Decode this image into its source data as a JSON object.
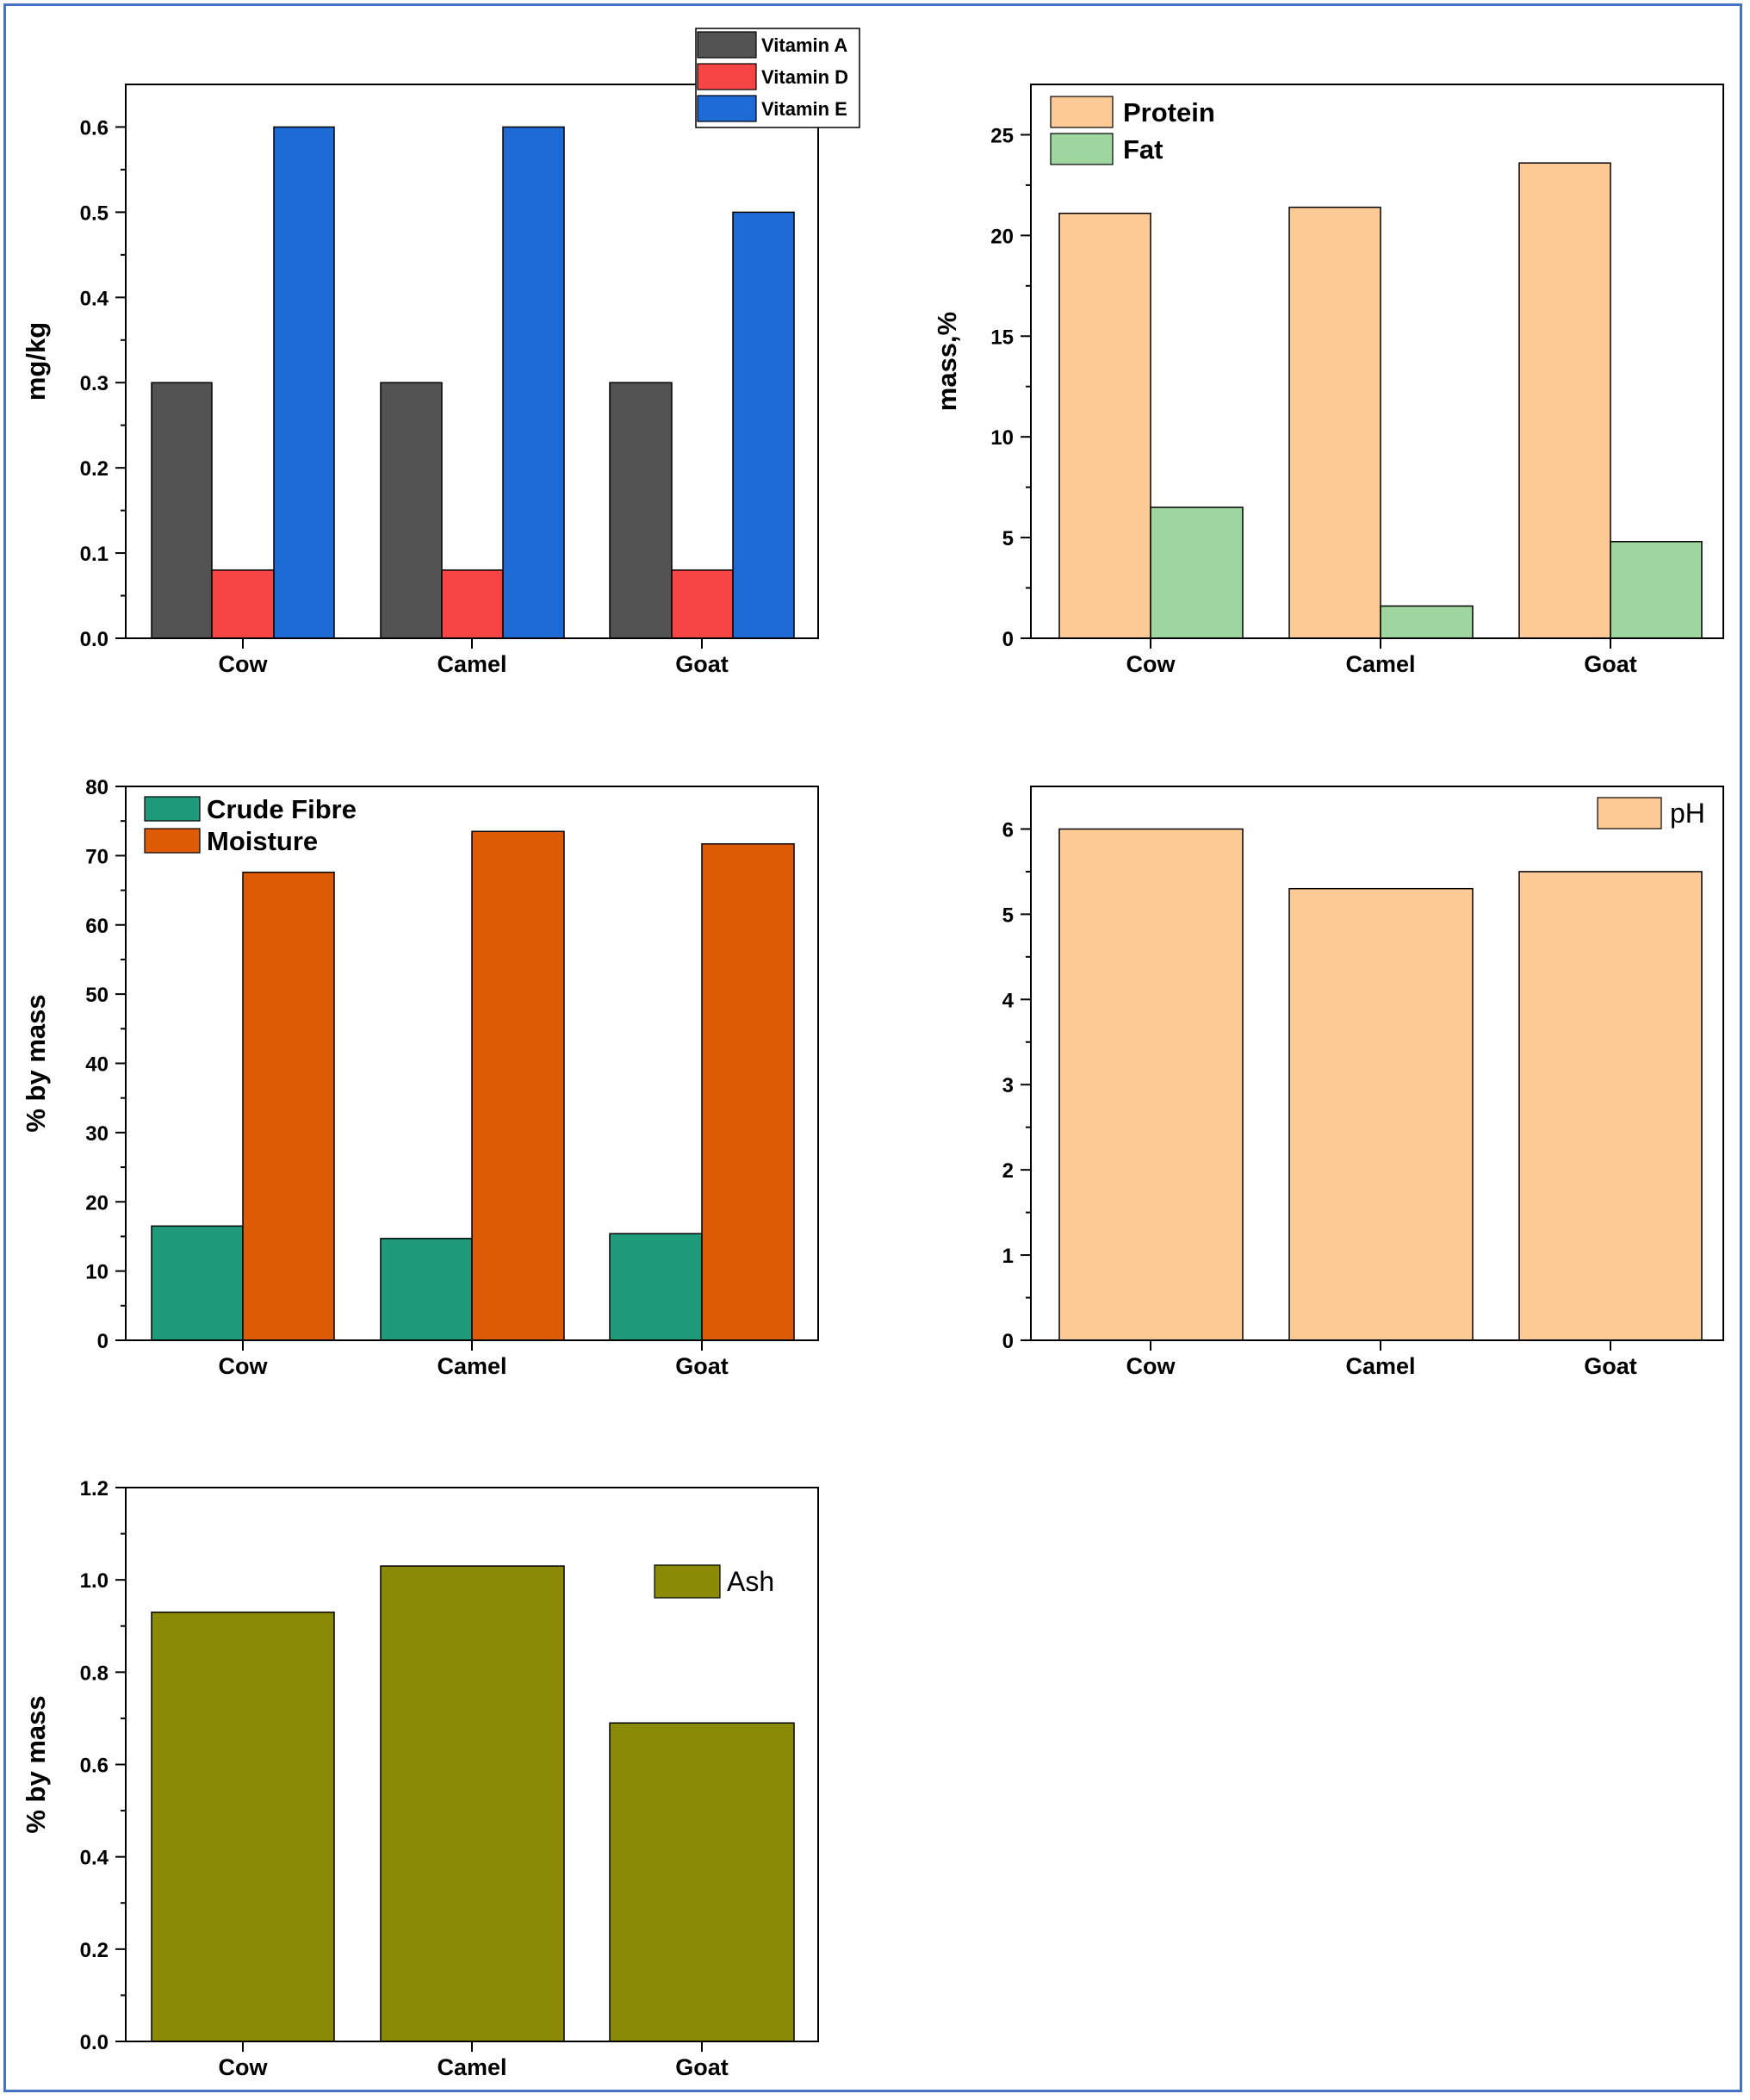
{
  "colors": {
    "frame_border": "#4472c4",
    "vitamin_a": "#525252",
    "vitamin_d": "#f74545",
    "vitamin_e": "#1f6bd6",
    "protein": "#fdca96",
    "fat": "#9fd69f",
    "crude_fibre": "#1f9b7b",
    "moisture": "#dd5a07",
    "ph": "#fdca96",
    "ash": "#8a8a06"
  },
  "chart_data": [
    {
      "id": "vitamins",
      "type": "bar",
      "categories": [
        "Cow",
        "Camel",
        "Goat"
      ],
      "series": [
        {
          "name": "Vitamin A",
          "values": [
            0.3,
            0.3,
            0.3
          ],
          "color": "#525252"
        },
        {
          "name": "Vitamin D",
          "values": [
            0.08,
            0.08,
            0.08
          ],
          "color": "#f74545"
        },
        {
          "name": "Vitamin E",
          "values": [
            0.6,
            0.6,
            0.5
          ],
          "color": "#1f6bd6"
        }
      ],
      "title": "",
      "xlabel": "",
      "ylabel": "mg/kg",
      "ylim": [
        0,
        0.65
      ],
      "yticks": [
        "0.0",
        "0.1",
        "0.2",
        "0.3",
        "0.4",
        "0.5",
        "0.6"
      ],
      "legend_position": "top-right"
    },
    {
      "id": "protein-fat",
      "type": "bar",
      "categories": [
        "Cow",
        "Camel",
        "Goat"
      ],
      "series": [
        {
          "name": "Protein",
          "values": [
            21.1,
            21.4,
            23.6
          ],
          "color": "#fdca96"
        },
        {
          "name": "Fat",
          "values": [
            6.5,
            1.6,
            4.8
          ],
          "color": "#9fd69f"
        }
      ],
      "title": "",
      "xlabel": "",
      "ylabel": "mass,%",
      "ylim": [
        0,
        27.5
      ],
      "yticks": [
        "0",
        "5",
        "10",
        "15",
        "20",
        "25"
      ],
      "legend_position": "top-left"
    },
    {
      "id": "fibre-moisture",
      "type": "bar",
      "categories": [
        "Cow",
        "Camel",
        "Goat"
      ],
      "series": [
        {
          "name": "Crude Fibre",
          "values": [
            16.5,
            14.7,
            15.4
          ],
          "color": "#1f9b7b"
        },
        {
          "name": "Moisture",
          "values": [
            67.6,
            73.5,
            71.7
          ],
          "color": "#dd5a07"
        }
      ],
      "title": "",
      "xlabel": "",
      "ylabel": "% by mass",
      "ylim": [
        0,
        80
      ],
      "yticks": [
        "0",
        "10",
        "20",
        "30",
        "40",
        "50",
        "60",
        "70",
        "80"
      ],
      "legend_position": "top-left"
    },
    {
      "id": "ph",
      "type": "bar",
      "categories": [
        "Cow",
        "Camel",
        "Goat"
      ],
      "series": [
        {
          "name": "pH",
          "values": [
            6.0,
            5.3,
            5.5
          ],
          "color": "#fdca96"
        }
      ],
      "title": "",
      "xlabel": "",
      "ylabel": "",
      "ylim": [
        0,
        6.5
      ],
      "yticks": [
        "0",
        "1",
        "2",
        "3",
        "4",
        "5",
        "6"
      ],
      "legend_position": "top-right"
    },
    {
      "id": "ash",
      "type": "bar",
      "categories": [
        "Cow",
        "Camel",
        "Goat"
      ],
      "series": [
        {
          "name": "Ash",
          "values": [
            0.93,
            1.03,
            0.69
          ],
          "color": "#8a8a06"
        }
      ],
      "title": "",
      "xlabel": "",
      "ylabel": "% by mass",
      "ylim": [
        0,
        1.2
      ],
      "yticks": [
        "0.0",
        "0.2",
        "0.4",
        "0.6",
        "0.8",
        "1.0",
        "1.2"
      ],
      "legend_position": "top-right"
    }
  ]
}
